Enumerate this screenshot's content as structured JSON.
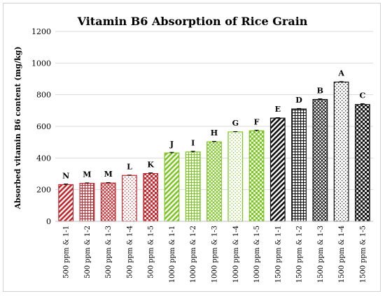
{
  "chart_data": {
    "type": "bar",
    "title": "Vitamin B6 Absorption of Rice Grain",
    "xlabel": "",
    "ylabel": "Absorbed vitamin B6 content (mg/kg)",
    "ylim": [
      0,
      1200
    ],
    "yticks": [
      0,
      200,
      400,
      600,
      800,
      1000,
      1200
    ],
    "grid": true,
    "categories": [
      "500 ppm & 1-1",
      "500 ppm & 1-2",
      "500 ppm & 1-3",
      "500 ppm & 1-4",
      "500 ppm & 1-5",
      "1000 ppm & 1-1",
      "1000 ppm & 1-2",
      "1000 ppm & 1-3",
      "1000 ppm & 1-4",
      "1000 ppm & 1-5",
      "1500 ppm & 1-1",
      "1500 ppm & 1-2",
      "1500 ppm & 1-3",
      "1500 ppm & 1-4",
      "1500 ppm & 1-5"
    ],
    "values": [
      232,
      240,
      242,
      290,
      302,
      432,
      438,
      502,
      565,
      572,
      652,
      710,
      770,
      880,
      738
    ],
    "errors": [
      4,
      3,
      3,
      2,
      4,
      4,
      5,
      3,
      2,
      4,
      3,
      3,
      4,
      3,
      5
    ],
    "letters": [
      "N",
      "M",
      "M",
      "L",
      "K",
      "J",
      "I",
      "H",
      "G",
      "F",
      "E",
      "D",
      "B",
      "A",
      "C"
    ],
    "patterns": [
      "diag",
      "grid",
      "dgrid",
      "dots",
      "check",
      "diag",
      "grid",
      "dgrid",
      "dots",
      "check",
      "diag",
      "grid",
      "dgrid",
      "dots",
      "check"
    ],
    "group_colors": [
      "#c0282d",
      "#7cc623",
      "#111111"
    ]
  }
}
